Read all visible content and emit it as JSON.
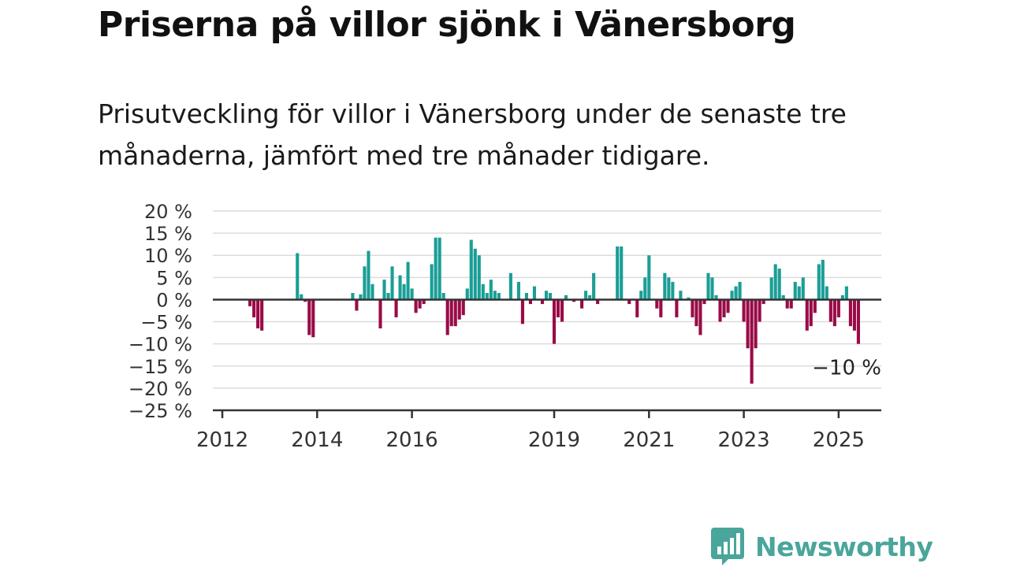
{
  "title": "Priserna på villor sjönk i Vänersborg",
  "subtitle": "Prisutveckling för villor i Vänersborg under de senaste tre månaderna, jämfört med tre månader tidigare.",
  "brand": {
    "name": "Newsworthy",
    "color": "#4aa59a",
    "icon": "newsworthy-logo-icon"
  },
  "colors": {
    "positive": "#1a9e96",
    "negative": "#990b47",
    "grid": "#dcdcdc",
    "axis": "#333333"
  },
  "chart_data": {
    "type": "bar",
    "ylim": [
      -25,
      20
    ],
    "yticks": [
      20,
      15,
      10,
      5,
      0,
      -5,
      -10,
      -15,
      -20,
      -25
    ],
    "ytick_labels": [
      "20 %",
      "15 %",
      "10 %",
      "5 %",
      "0 %",
      "−5 %",
      "−10 %",
      "−15 %",
      "−20 %",
      "−25 %"
    ],
    "xtick_labels": [
      "2012",
      "2014",
      "2016",
      "2019",
      "2021",
      "2023",
      "2025"
    ],
    "xtick_years": [
      2012,
      2014,
      2016,
      2019,
      2021,
      2023,
      2025
    ],
    "x_range": [
      2011.8,
      2025.9
    ],
    "grid": true,
    "annotation": {
      "text": "−10 %",
      "x": 2025.2,
      "y": -10
    },
    "values": [
      [
        "2012-08",
        -1.5
      ],
      [
        "2012-09",
        -4
      ],
      [
        "2012-10",
        -6.5
      ],
      [
        "2012-11",
        -7
      ],
      [
        "2013-08",
        10.5
      ],
      [
        "2013-09",
        1.2
      ],
      [
        "2013-10",
        -0.5
      ],
      [
        "2013-11",
        -8
      ],
      [
        "2013-12",
        -8.5
      ],
      [
        "2014-10",
        1.5
      ],
      [
        "2014-11",
        -2.5
      ],
      [
        "2014-12",
        1.2
      ],
      [
        "2015-01",
        7.5
      ],
      [
        "2015-02",
        11
      ],
      [
        "2015-03",
        3.5
      ],
      [
        "2015-05",
        -6.5
      ],
      [
        "2015-06",
        4.5
      ],
      [
        "2015-07",
        1.5
      ],
      [
        "2015-08",
        7.5
      ],
      [
        "2015-09",
        -4
      ],
      [
        "2015-10",
        5.5
      ],
      [
        "2015-11",
        3.5
      ],
      [
        "2015-12",
        8.5
      ],
      [
        "2016-01",
        2.5
      ],
      [
        "2016-02",
        -3
      ],
      [
        "2016-03",
        -2
      ],
      [
        "2016-04",
        -1
      ],
      [
        "2016-06",
        8
      ],
      [
        "2016-07",
        14
      ],
      [
        "2016-08",
        14
      ],
      [
        "2016-09",
        1.5
      ],
      [
        "2016-10",
        -8
      ],
      [
        "2016-11",
        -6
      ],
      [
        "2016-12",
        -6
      ],
      [
        "2017-01",
        -4.5
      ],
      [
        "2017-02",
        -3.5
      ],
      [
        "2017-03",
        2.5
      ],
      [
        "2017-04",
        13.5
      ],
      [
        "2017-05",
        11.5
      ],
      [
        "2017-06",
        10
      ],
      [
        "2017-07",
        3.5
      ],
      [
        "2017-08",
        1.5
      ],
      [
        "2017-09",
        4.5
      ],
      [
        "2017-10",
        2
      ],
      [
        "2017-11",
        1.5
      ],
      [
        "2018-02",
        6
      ],
      [
        "2018-04",
        4
      ],
      [
        "2018-05",
        -5.5
      ],
      [
        "2018-06",
        1.5
      ],
      [
        "2018-07",
        -1
      ],
      [
        "2018-08",
        3
      ],
      [
        "2018-10",
        -1
      ],
      [
        "2018-11",
        2
      ],
      [
        "2018-12",
        1.5
      ],
      [
        "2019-01",
        -10
      ],
      [
        "2019-02",
        -4
      ],
      [
        "2019-03",
        -5
      ],
      [
        "2019-04",
        1
      ],
      [
        "2019-06",
        -0.5
      ],
      [
        "2019-08",
        -2
      ],
      [
        "2019-09",
        2
      ],
      [
        "2019-10",
        1
      ],
      [
        "2019-11",
        6
      ],
      [
        "2019-12",
        -1
      ],
      [
        "2020-05",
        12
      ],
      [
        "2020-06",
        12
      ],
      [
        "2020-08",
        -1
      ],
      [
        "2020-10",
        -4
      ],
      [
        "2020-11",
        2
      ],
      [
        "2020-12",
        5
      ],
      [
        "2021-01",
        10
      ],
      [
        "2021-03",
        -2
      ],
      [
        "2021-04",
        -4
      ],
      [
        "2021-05",
        6
      ],
      [
        "2021-06",
        5
      ],
      [
        "2021-07",
        4
      ],
      [
        "2021-08",
        -4
      ],
      [
        "2021-09",
        2
      ],
      [
        "2021-11",
        0.5
      ],
      [
        "2021-12",
        -4
      ],
      [
        "2022-01",
        -6
      ],
      [
        "2022-02",
        -8
      ],
      [
        "2022-03",
        -1
      ],
      [
        "2022-04",
        6
      ],
      [
        "2022-05",
        5
      ],
      [
        "2022-06",
        1
      ],
      [
        "2022-07",
        -5
      ],
      [
        "2022-08",
        -4
      ],
      [
        "2022-09",
        -3
      ],
      [
        "2022-10",
        2
      ],
      [
        "2022-11",
        3
      ],
      [
        "2022-12",
        4
      ],
      [
        "2023-01",
        -5
      ],
      [
        "2023-02",
        -11
      ],
      [
        "2023-03",
        -19
      ],
      [
        "2023-04",
        -11
      ],
      [
        "2023-05",
        -5
      ],
      [
        "2023-06",
        -1
      ],
      [
        "2023-08",
        5
      ],
      [
        "2023-09",
        8
      ],
      [
        "2023-10",
        7
      ],
      [
        "2023-11",
        1
      ],
      [
        "2023-12",
        -2
      ],
      [
        "2024-01",
        -2
      ],
      [
        "2024-02",
        4
      ],
      [
        "2024-03",
        3
      ],
      [
        "2024-04",
        5
      ],
      [
        "2024-05",
        -7
      ],
      [
        "2024-06",
        -6
      ],
      [
        "2024-07",
        -3
      ],
      [
        "2024-08",
        8
      ],
      [
        "2024-09",
        9
      ],
      [
        "2024-10",
        3
      ],
      [
        "2024-11",
        -5
      ],
      [
        "2024-12",
        -6
      ],
      [
        "2025-01",
        -4
      ],
      [
        "2025-02",
        1
      ],
      [
        "2025-03",
        3
      ],
      [
        "2025-04",
        -6
      ],
      [
        "2025-05",
        -7
      ],
      [
        "2025-06",
        -10
      ]
    ]
  }
}
